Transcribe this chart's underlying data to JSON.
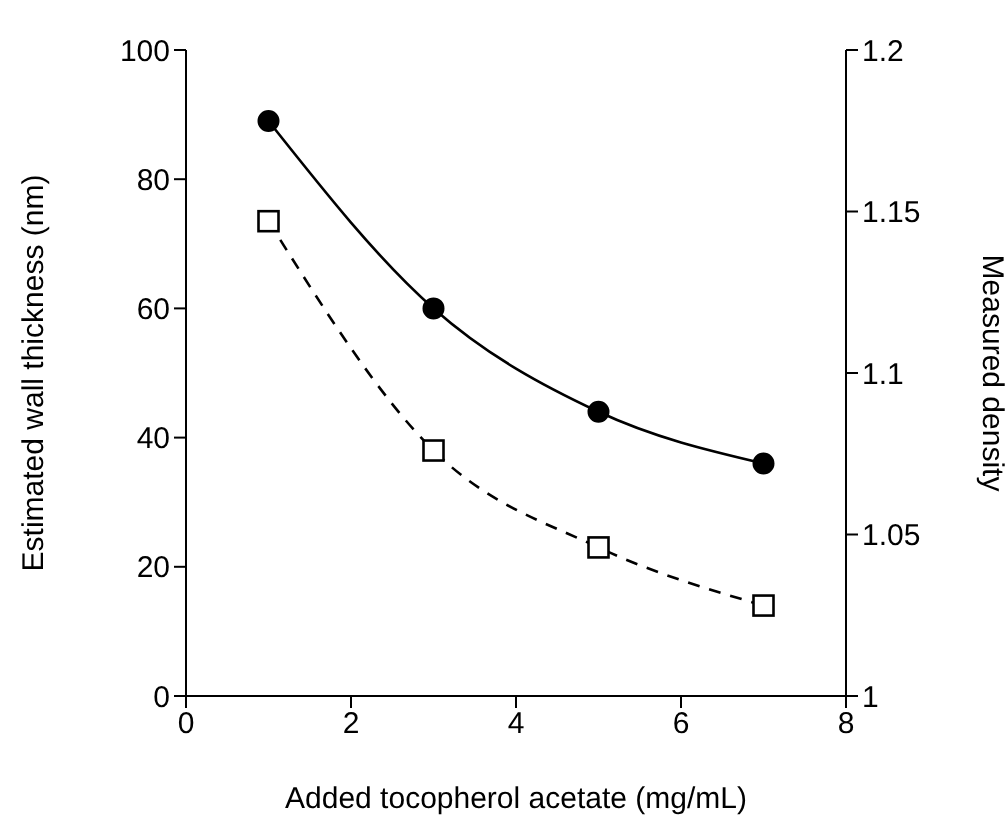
{
  "chart_data": {
    "type": "line",
    "xlabel": "Added tocopherol acetate (mg/mL)",
    "ylabel": "Estimated wall thickness (nm)",
    "y2label": "Measured density",
    "x": [
      1,
      3,
      5,
      7
    ],
    "series": [
      {
        "color": "#000000",
        "values": [
          89,
          60,
          44,
          36
        ],
        "marker": "circle",
        "line_style": "solid"
      },
      {
        "color": "#000000",
        "values": [
          1.147,
          1.076,
          1.046,
          1.028
        ],
        "marker": "square",
        "line_style": "dashed",
        "axis": "y2"
      }
    ],
    "xlim": [
      0,
      8
    ],
    "xticks": [
      0,
      2,
      4,
      6,
      8
    ],
    "ylim": [
      0,
      100
    ],
    "yticks": [
      0,
      20,
      40,
      60,
      80,
      100
    ],
    "y2lim": [
      1,
      1.2
    ],
    "y2ticks": [
      1,
      1.05,
      1.1,
      1.15,
      1.2
    ],
    "grid": false
  }
}
